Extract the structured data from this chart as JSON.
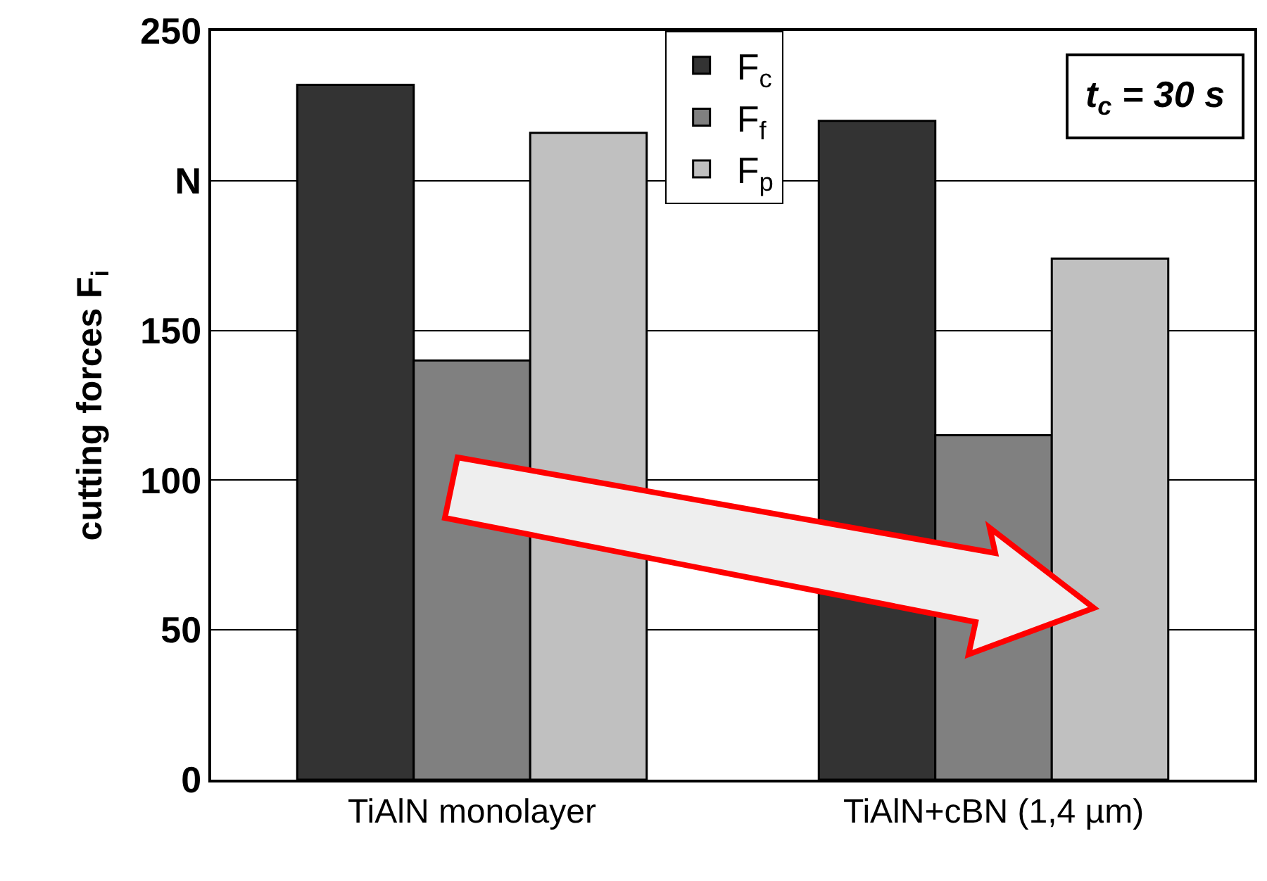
{
  "chart_data": {
    "type": "bar",
    "ylabel": "cutting forces F$_{i}$",
    "categories": [
      "TiAlN monolayer",
      "TiAlN+cBN (1,4 µm)"
    ],
    "series": [
      {
        "name": "F$_{c}$",
        "color": "#333333",
        "values": [
          232,
          220
        ]
      },
      {
        "name": "F$_{f}$",
        "color": "#808080",
        "values": [
          140,
          115
        ]
      },
      {
        "name": "F$_{p}$",
        "color": "#c0c0c0",
        "values": [
          216,
          174
        ]
      }
    ],
    "ylim": [
      0,
      250
    ],
    "yticks": [
      0,
      50,
      100,
      150,
      {
        "value": 200,
        "label": "N"
      },
      250
    ],
    "grid": "y",
    "legend": "top",
    "annotations": [
      "t$_{c}$ = 30 s"
    ]
  }
}
